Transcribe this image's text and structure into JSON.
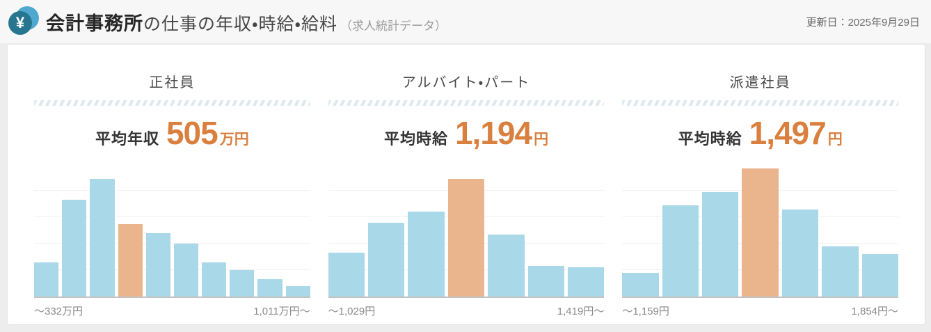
{
  "header": {
    "icon": "yen-circle-icon",
    "title_bold": "会計事務所",
    "title_rest": "の仕事の年収・時給・給料",
    "title_note": "（求人統計データ）",
    "updated": "更新日：2025年9月29日",
    "yen_glyph": "¥"
  },
  "colors": {
    "accent_orange_text": "#d9803f",
    "bar_blue": "#a9d8e8",
    "bar_highlight_orange": "#eab58c",
    "icon_front_teal": "#26768f",
    "icon_back_blue": "#4fa8ce",
    "header_bg": "#f7f7f8",
    "page_bg": "#ededee"
  },
  "chart_data": [
    {
      "type": "bar",
      "title": "正社員",
      "stat_label": "平均年収",
      "stat_value": "505",
      "stat_unit": "万円",
      "x_axis_left_label": "～332万円",
      "x_axis_right_label": "1,011万円～",
      "values_note": "relative bar heights in % of plot area (no y-axis labels shown)",
      "values": [
        26,
        73,
        89,
        55,
        48,
        40,
        26,
        20,
        13,
        8
      ],
      "highlight_index": 3,
      "grid": "4 horizontal gridlines",
      "legend": "none"
    },
    {
      "type": "bar",
      "title": "アルバイト・パート",
      "stat_label": "平均時給",
      "stat_value": "1,194",
      "stat_unit": "円",
      "x_axis_left_label": "～1,029円",
      "x_axis_right_label": "1,419円～",
      "values_note": "relative bar heights in % of plot area (no y-axis labels shown)",
      "values": [
        33,
        56,
        64,
        89,
        47,
        23,
        22
      ],
      "highlight_index": 3,
      "grid": "4 horizontal gridlines",
      "legend": "none"
    },
    {
      "type": "bar",
      "title": "派遣社員",
      "stat_label": "平均時給",
      "stat_value": "1,497",
      "stat_unit": "円",
      "x_axis_left_label": "～1,159円",
      "x_axis_right_label": "1,854円～",
      "values_note": "relative bar heights in % of plot area (no y-axis labels shown)",
      "values": [
        18,
        69,
        79,
        97,
        66,
        38,
        32
      ],
      "highlight_index": 3,
      "grid": "4 horizontal gridlines",
      "legend": "none"
    }
  ]
}
